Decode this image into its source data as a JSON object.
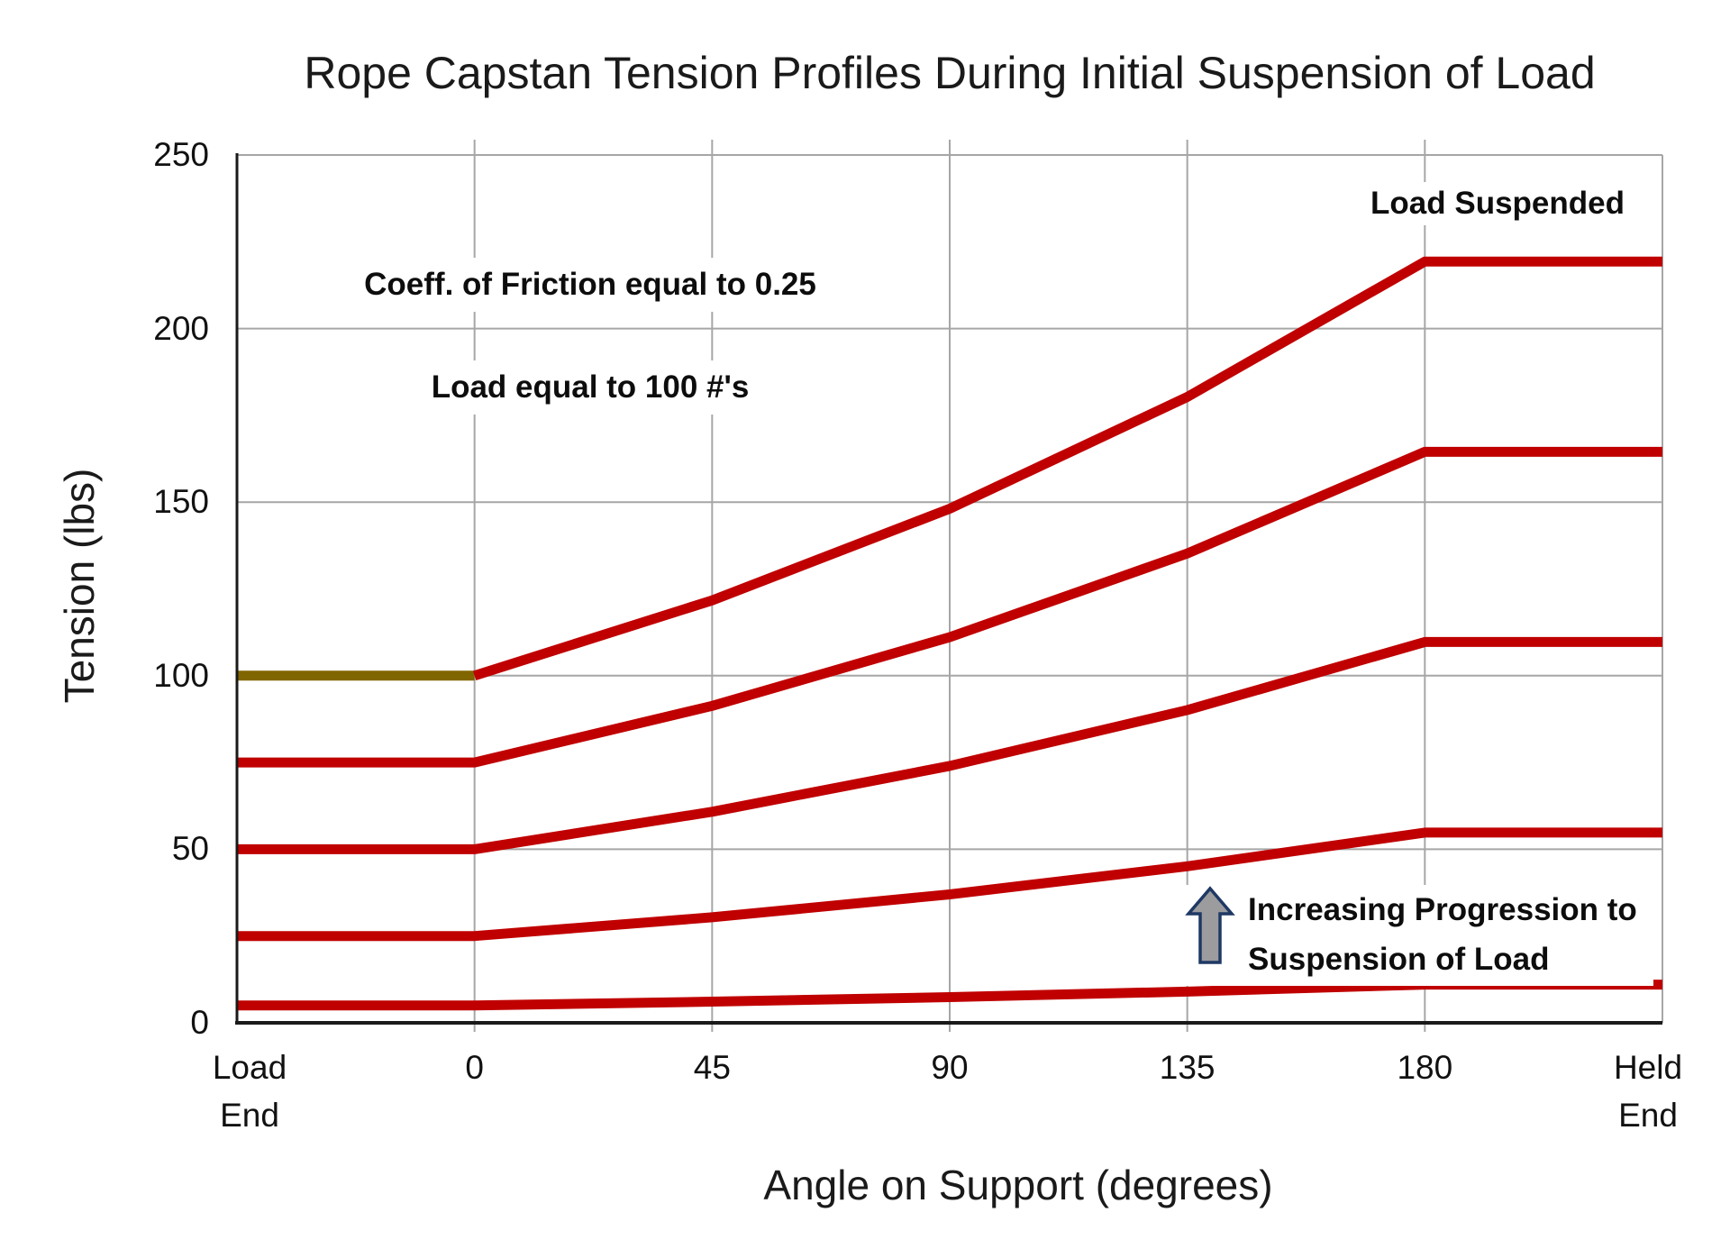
{
  "title": "Rope Capstan Tension Profiles During Initial Suspension of Load",
  "y_axis": {
    "title": "Tension (lbs)",
    "ticks": [
      0,
      50,
      100,
      150,
      200,
      250
    ],
    "min": 0,
    "max": 250
  },
  "x_axis": {
    "title": "Angle on Support (degrees)",
    "tick_labels": [
      "Load End",
      "0",
      "45",
      "90",
      "135",
      "180",
      "Held End"
    ]
  },
  "annotations": {
    "coeff": "Coeff. of Friction equal to 0.25",
    "load": "Load equal to 100 #'s",
    "load_suspended": "Load Suspended",
    "progression": "Increasing Progression to Suspension of Load"
  },
  "colors": {
    "series_red": "#C00000",
    "initial_load_olive": "#806600",
    "gridline": "#A6A6A6",
    "axis": "#1A1A1A",
    "arrow_fill": "#9C9C9E",
    "arrow_stroke": "#1F3864"
  },
  "chart_data": {
    "type": "line",
    "title": "Rope Capstan Tension Profiles During Initial Suspension of Load",
    "xlabel": "Angle on Support (degrees)",
    "ylabel": "Tension (lbs)",
    "x_categories": [
      "Load End",
      "0",
      "45",
      "90",
      "135",
      "180",
      "Held End"
    ],
    "ylim": [
      0,
      250
    ],
    "y_gridlines": [
      50,
      100,
      150,
      200
    ],
    "grid": true,
    "legend": "none",
    "coefficient_of_friction": 0.25,
    "load_lbs": 100,
    "series": [
      {
        "name": "initial-load-line-100-lbs",
        "color_key": "initial_load_olive",
        "values": [
          100,
          100,
          null,
          null,
          null,
          null,
          null
        ]
      },
      {
        "name": "tension-profile-load-100",
        "color_key": "series_red",
        "values": [
          null,
          100,
          121.7,
          148.1,
          180.3,
          219.3,
          219.3
        ]
      },
      {
        "name": "tension-profile-load-75",
        "color_key": "series_red",
        "values": [
          75,
          75,
          91.3,
          111.1,
          135.2,
          164.5,
          164.5
        ]
      },
      {
        "name": "tension-profile-load-50",
        "color_key": "series_red",
        "values": [
          50,
          50,
          60.8,
          74.0,
          90.1,
          109.7,
          109.7
        ]
      },
      {
        "name": "tension-profile-load-25",
        "color_key": "series_red",
        "values": [
          25,
          25,
          30.4,
          37.0,
          45.1,
          54.8,
          54.8
        ]
      },
      {
        "name": "tension-profile-load-5",
        "color_key": "series_red",
        "values": [
          5,
          5,
          6.1,
          7.4,
          9.0,
          11.0,
          11.0
        ]
      }
    ]
  }
}
